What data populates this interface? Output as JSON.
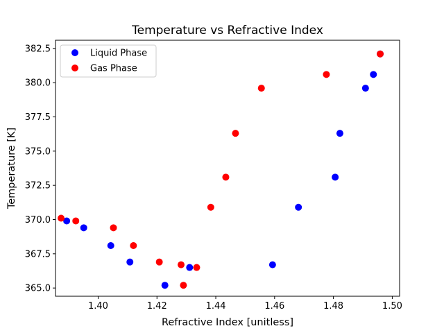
{
  "chart_data": {
    "type": "scatter",
    "title": "Temperature vs Refractive Index",
    "xlabel": "Refractive Index [unitless]",
    "ylabel": "Temperature [K]",
    "xlim": [
      1.3855,
      1.5025
    ],
    "ylim": [
      364.4,
      383.1
    ],
    "xticks": [
      1.4,
      1.42,
      1.44,
      1.46,
      1.48,
      1.5
    ],
    "xtick_labels": [
      "1.40",
      "1.42",
      "1.44",
      "1.46",
      "1.48",
      "1.50"
    ],
    "yticks": [
      365.0,
      367.5,
      370.0,
      372.5,
      375.0,
      377.5,
      380.0,
      382.5
    ],
    "ytick_labels": [
      "365.0",
      "367.5",
      "370.0",
      "372.5",
      "375.0",
      "377.5",
      "380.0",
      "382.5"
    ],
    "grid": false,
    "legend_position": "top-left",
    "series": [
      {
        "name": "Liquid Phase",
        "color": "#0000ff",
        "points": [
          [
            1.3893,
            369.9
          ],
          [
            1.3951,
            369.4
          ],
          [
            1.4043,
            368.1
          ],
          [
            1.4108,
            366.9
          ],
          [
            1.4227,
            365.2
          ],
          [
            1.4311,
            366.5
          ],
          [
            1.4593,
            366.7
          ],
          [
            1.4681,
            370.9
          ],
          [
            1.4806,
            373.1
          ],
          [
            1.4822,
            376.3
          ],
          [
            1.4909,
            379.6
          ],
          [
            1.4936,
            380.6
          ],
          [
            1.4959,
            382.1
          ]
        ]
      },
      {
        "name": "Gas Phase",
        "color": "#ff0000",
        "points": [
          [
            1.3874,
            370.1
          ],
          [
            1.3924,
            369.9
          ],
          [
            1.4052,
            369.4
          ],
          [
            1.412,
            368.1
          ],
          [
            1.4208,
            366.9
          ],
          [
            1.4282,
            366.7
          ],
          [
            1.429,
            365.2
          ],
          [
            1.4335,
            366.5
          ],
          [
            1.4383,
            370.9
          ],
          [
            1.4434,
            373.1
          ],
          [
            1.4467,
            376.3
          ],
          [
            1.4555,
            379.6
          ],
          [
            1.4776,
            380.6
          ],
          [
            1.4959,
            382.1
          ]
        ]
      }
    ]
  }
}
